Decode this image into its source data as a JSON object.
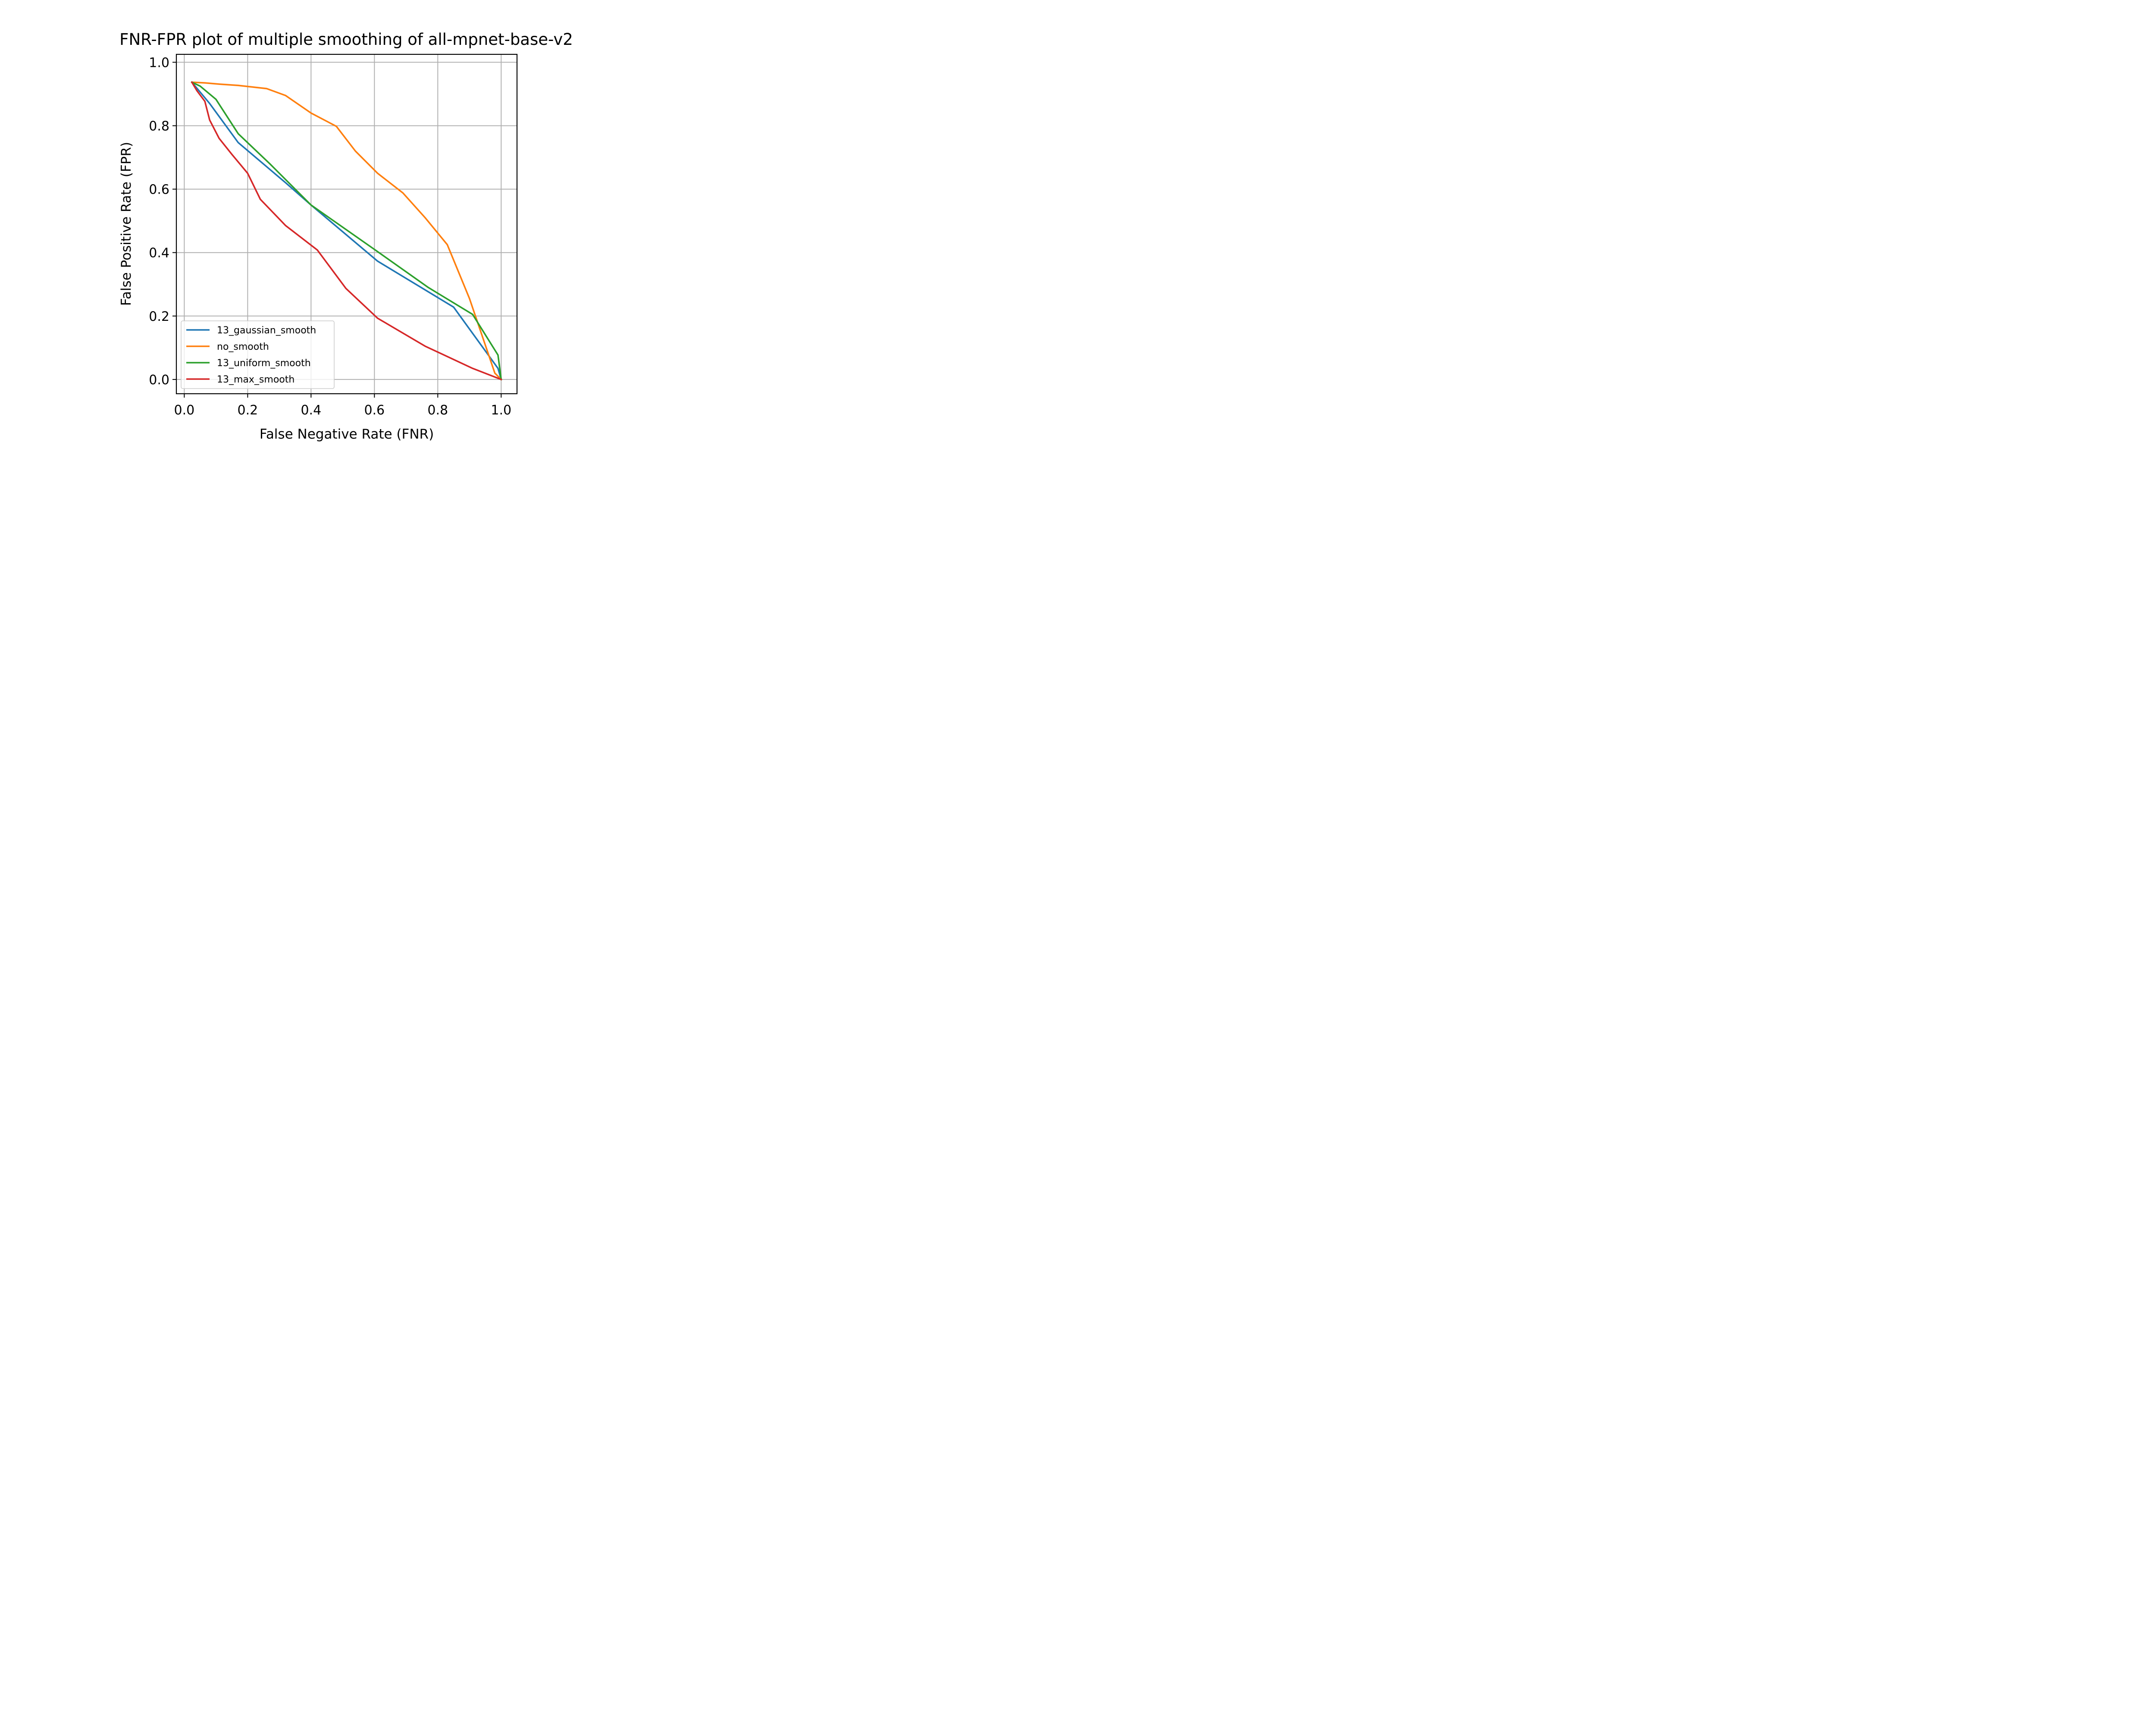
{
  "chart_data": {
    "type": "line",
    "title": "FNR-FPR plot of multiple smoothing of all-mpnet-base-v2",
    "xlabel": "False Negative Rate (FNR)",
    "ylabel": "False Positive Rate (FPR)",
    "xlim": [
      -0.025,
      1.05
    ],
    "ylim": [
      -0.045,
      1.025
    ],
    "xticks": [
      0.0,
      0.2,
      0.4,
      0.6,
      0.8,
      1.0
    ],
    "xtick_labels": [
      "0.0",
      "0.2",
      "0.4",
      "0.6",
      "0.8",
      "1.0"
    ],
    "yticks": [
      0.0,
      0.2,
      0.4,
      0.6,
      0.8,
      1.0
    ],
    "ytick_labels": [
      "0.0",
      "0.2",
      "0.4",
      "0.6",
      "0.8",
      "1.0"
    ],
    "grid": true,
    "legend_position": "lower-left",
    "series": [
      {
        "name": "13_gaussian_smooth",
        "color": "#1f77b4",
        "x": [
          0.024,
          0.08,
          0.17,
          0.32,
          0.4,
          0.61,
          0.85,
          0.99,
          1.0
        ],
        "y": [
          0.937,
          0.87,
          0.747,
          0.62,
          0.55,
          0.373,
          0.228,
          0.035,
          0.0
        ]
      },
      {
        "name": "no_smooth",
        "color": "#ff7f0e",
        "x": [
          0.024,
          0.065,
          0.11,
          0.17,
          0.26,
          0.32,
          0.4,
          0.48,
          0.54,
          0.61,
          0.69,
          0.76,
          0.83,
          0.9,
          0.98,
          1.0
        ],
        "y": [
          0.937,
          0.935,
          0.931,
          0.927,
          0.917,
          0.895,
          0.84,
          0.798,
          0.72,
          0.65,
          0.588,
          0.51,
          0.425,
          0.255,
          0.02,
          0.0
        ]
      },
      {
        "name": "13_uniform_smooth",
        "color": "#2ca02c",
        "x": [
          0.024,
          0.05,
          0.1,
          0.17,
          0.27,
          0.4,
          0.6,
          0.77,
          0.91,
          0.99,
          1.0
        ],
        "y": [
          0.937,
          0.925,
          0.883,
          0.775,
          0.68,
          0.55,
          0.41,
          0.29,
          0.205,
          0.077,
          0.0
        ]
      },
      {
        "name": "13_max_smooth",
        "color": "#d62728",
        "x": [
          0.024,
          0.04,
          0.065,
          0.08,
          0.11,
          0.15,
          0.2,
          0.24,
          0.32,
          0.42,
          0.51,
          0.61,
          0.76,
          0.91,
          1.0
        ],
        "y": [
          0.937,
          0.91,
          0.877,
          0.818,
          0.76,
          0.71,
          0.65,
          0.568,
          0.485,
          0.408,
          0.287,
          0.193,
          0.105,
          0.035,
          0.0
        ]
      }
    ]
  }
}
